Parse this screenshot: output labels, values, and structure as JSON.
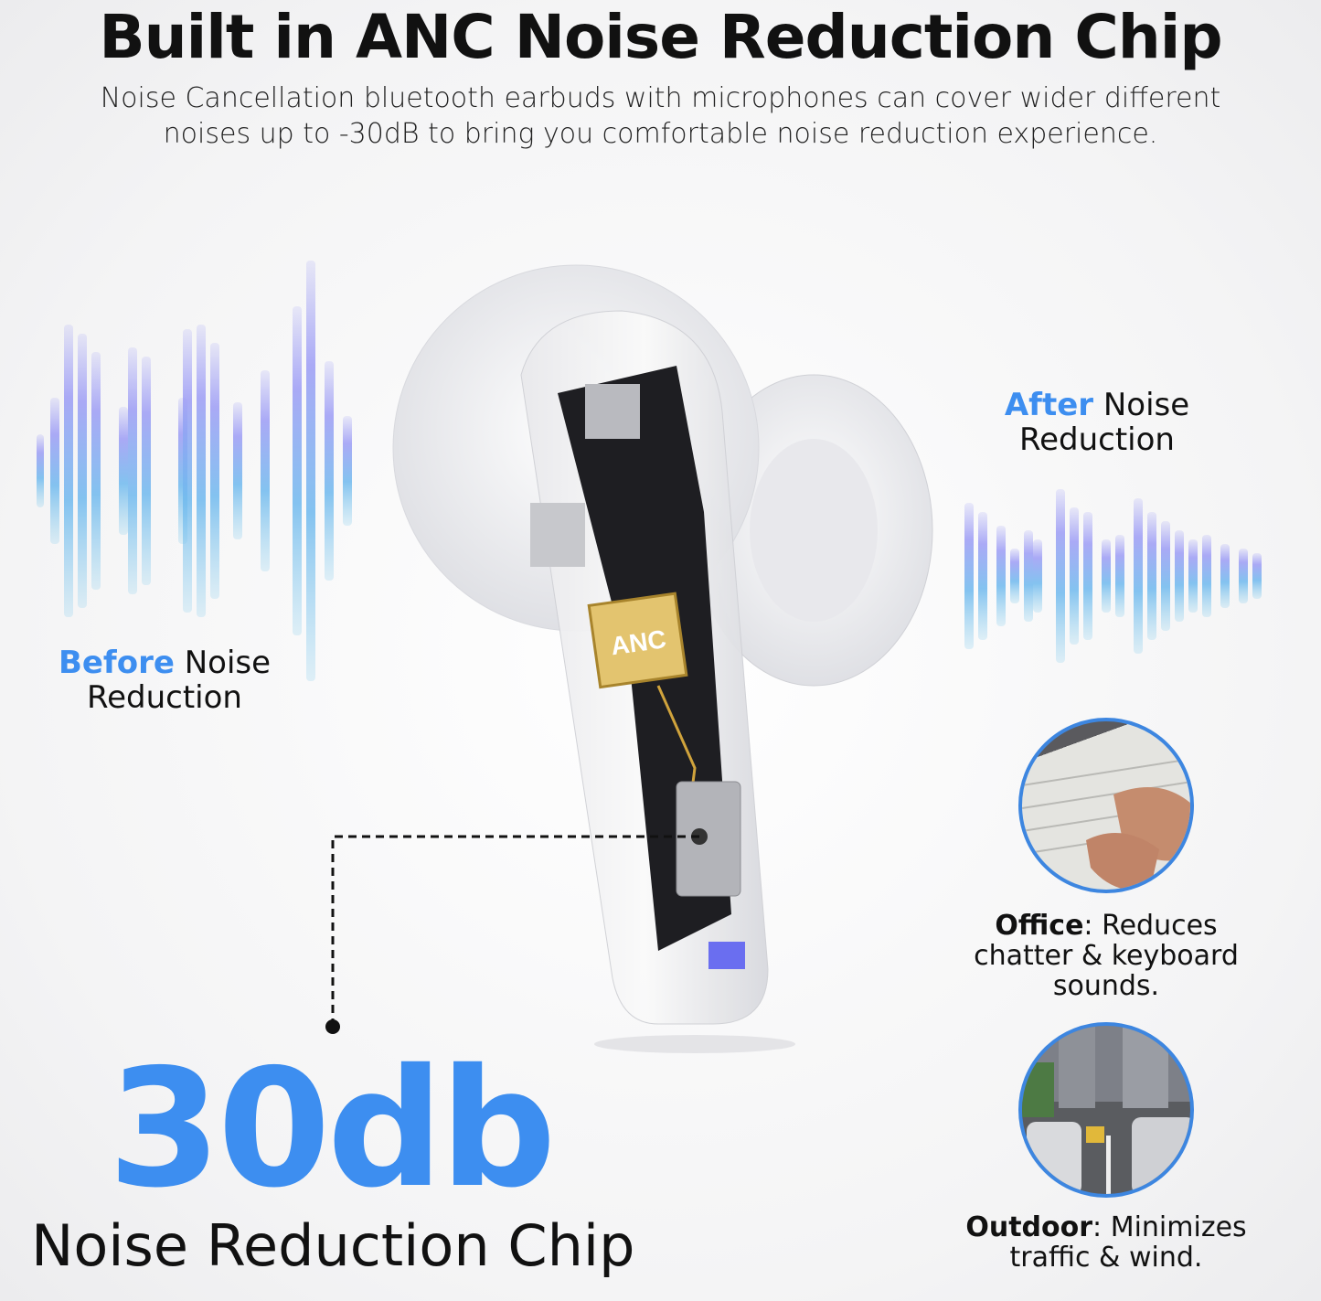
{
  "header": {
    "title": "Built in ANC Noise Reduction Chip",
    "subtitle": "Noise Cancellation bluetooth earbuds with microphones can cover wider different noises up to -30dB to bring you comfortable noise reduction experience."
  },
  "before": {
    "accent": "Before",
    "line1_rest": " Noise",
    "line2": "Reduction"
  },
  "after": {
    "accent": "After",
    "line1_rest": " Noise",
    "line2": "Reduction"
  },
  "earbud": {
    "chip_text": "ANC"
  },
  "highlight": {
    "value": "30db",
    "label": "Noise Reduction Chip"
  },
  "scenarios": [
    {
      "name": "Office",
      "text_1": ": Reduces",
      "text_2": "chatter & keyboard",
      "text_3": "sounds.",
      "image": "keyboard-typing-photo"
    },
    {
      "name": "Outdoor",
      "text_1": ": Minimizes",
      "text_2": "traffic & wind.",
      "image": "city-traffic-photo"
    }
  ],
  "colors": {
    "accent": "#3d8ef0",
    "wave_top": "#9c9cf5",
    "wave_bottom": "#8fd0ee",
    "circle_border": "#3d86e0"
  }
}
